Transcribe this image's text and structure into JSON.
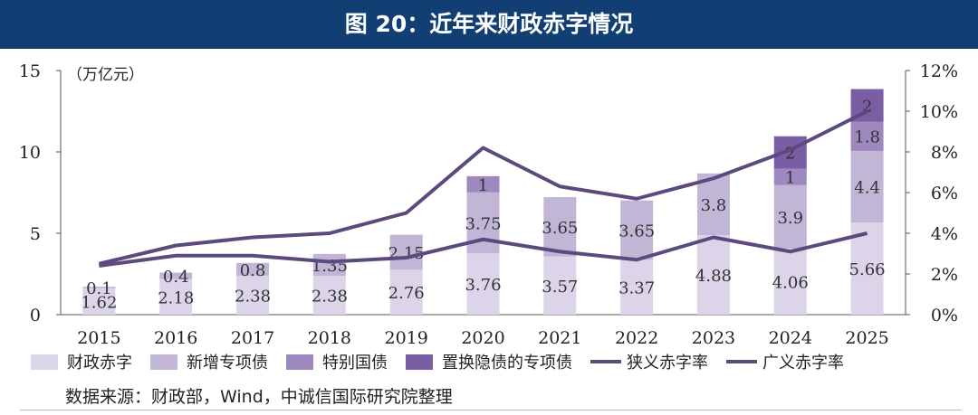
{
  "title": "图 20：近年来财政赤字情况",
  "source": "数据来源：财政部，Wind，中诚信国际研究院整理",
  "chart_data": {
    "type": "bar",
    "stacked": true,
    "categories": [
      "2015",
      "2016",
      "2017",
      "2018",
      "2019",
      "2020",
      "2021",
      "2022",
      "2023",
      "2024",
      "2025"
    ],
    "ylabel": "（万亿元）",
    "ylim": [
      0,
      15
    ],
    "yticks": [
      "0",
      "5",
      "10",
      "15"
    ],
    "y2lim": [
      0,
      12
    ],
    "y2ticks": [
      "0%",
      "2%",
      "4%",
      "6%",
      "8%",
      "10%",
      "12%"
    ],
    "series": [
      {
        "name": "财政赤字",
        "color": "#dcd5e9",
        "values": [
          1.62,
          2.18,
          2.38,
          2.38,
          2.76,
          3.76,
          3.57,
          3.37,
          4.88,
          4.06,
          5.66
        ],
        "labels": [
          "1.62",
          "2.18",
          "2.38",
          "2.38",
          "2.76",
          "3.76",
          "3.57",
          "3.37",
          "4.88",
          "4.06",
          "5.66"
        ]
      },
      {
        "name": "新增专项债",
        "color": "#c2b6d7",
        "values": [
          0.1,
          0.4,
          0.8,
          1.35,
          2.15,
          3.75,
          3.65,
          3.65,
          3.8,
          3.9,
          4.4
        ],
        "labels": [
          "0.1",
          "0.4",
          "0.8",
          "1.35",
          "2.15",
          "3.75",
          "3.65",
          "3.65",
          "3.8",
          "3.9",
          "4.4"
        ]
      },
      {
        "name": "特别国债",
        "color": "#9d88bf",
        "values": [
          0,
          0,
          0,
          0,
          0,
          1,
          0,
          0,
          0,
          1,
          1.8
        ],
        "labels": [
          "",
          "",
          "",
          "",
          "",
          "1",
          "",
          "",
          "",
          "1",
          "1.8"
        ]
      },
      {
        "name": "置换隐债的专项债",
        "color": "#7a5ea3",
        "values": [
          0,
          0,
          0,
          0,
          0,
          0,
          0,
          0,
          0,
          2,
          2
        ],
        "labels": [
          "",
          "",
          "",
          "",
          "",
          "",
          "",
          "",
          "",
          "2",
          "2"
        ]
      }
    ],
    "lines": [
      {
        "name": "狭义赤字率",
        "color": "#5c4a7e",
        "values": [
          2.4,
          2.9,
          2.9,
          2.6,
          2.8,
          3.7,
          3.1,
          2.7,
          3.8,
          3.1,
          4.0
        ]
      },
      {
        "name": "广义赤字率",
        "color": "#5c4a7e",
        "values": [
          2.5,
          3.4,
          3.8,
          4.0,
          5.0,
          8.2,
          6.3,
          5.7,
          6.7,
          8.1,
          10.0
        ]
      }
    ]
  }
}
